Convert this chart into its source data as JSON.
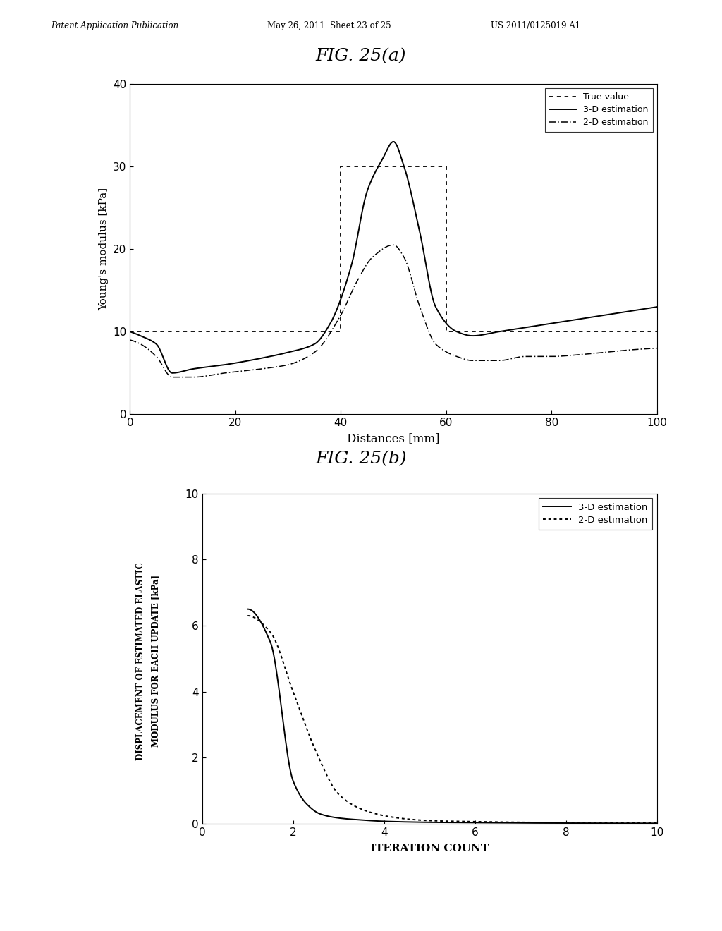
{
  "fig_title_a": "FIG. 25(a)",
  "fig_title_b": "FIG. 25(b)",
  "header_left": "Patent Application Publication",
  "header_mid": "May 26, 2011  Sheet 23 of 25",
  "header_right": "US 2011/0125019 A1",
  "chart_a": {
    "xlabel": "Distances [mm]",
    "ylabel": "Young's modulus [kPa]",
    "xlim": [
      0,
      100
    ],
    "ylim": [
      0,
      40
    ],
    "xticks": [
      0,
      20,
      40,
      60,
      80,
      100
    ],
    "yticks": [
      0,
      10,
      20,
      30,
      40
    ],
    "true_value_x": [
      0,
      40,
      40,
      60,
      60,
      100
    ],
    "true_value_y": [
      10,
      10,
      30,
      30,
      10,
      10
    ],
    "legend_labels": [
      "True value",
      "3-D estimation",
      "2-D estimation"
    ]
  },
  "chart_b": {
    "xlabel": "ITERATION COUNT",
    "ylabel_line1": "DISPLACEMENT OF ESTIMATED ELASTIC",
    "ylabel_line2": "MODULUS FOR EACH UPDATE [kPa]",
    "xlim": [
      0,
      10
    ],
    "ylim": [
      0,
      10
    ],
    "xticks": [
      0,
      2,
      4,
      6,
      8,
      10
    ],
    "yticks": [
      0,
      2,
      4,
      6,
      8,
      10
    ],
    "legend_labels": [
      "3-D estimation",
      "2-D estimation"
    ]
  },
  "background_color": "#ffffff",
  "text_color": "#000000"
}
